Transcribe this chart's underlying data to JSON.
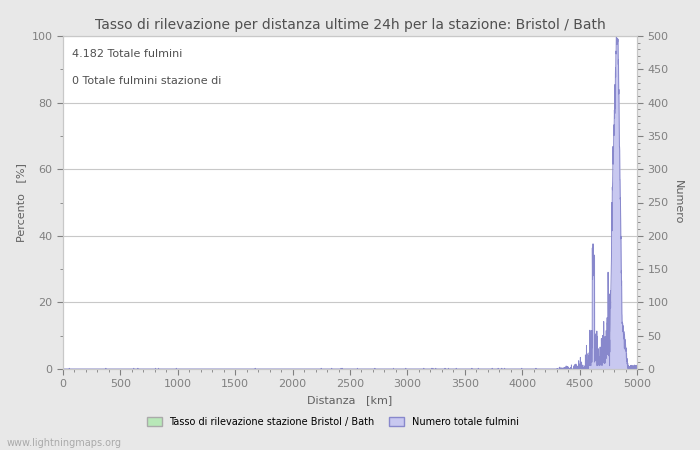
{
  "title": "Tasso di rilevazione per distanza ultime 24h per la stazione: Bristol / Bath",
  "annotation_line1": "4.182 Totale fulmini",
  "annotation_line2": "0 Totale fulmini stazione di",
  "xlabel": "Distanza   [km]",
  "ylabel_left": "Percento   [%]",
  "ylabel_right": "Numero",
  "xlim": [
    0,
    5000
  ],
  "ylim_left": [
    0,
    100
  ],
  "ylim_right": [
    0,
    500
  ],
  "xticks": [
    0,
    500,
    1000,
    1500,
    2000,
    2500,
    3000,
    3500,
    4000,
    4500,
    5000
  ],
  "yticks_left": [
    0,
    20,
    40,
    60,
    80,
    100
  ],
  "yticks_right": [
    0,
    50,
    100,
    150,
    200,
    250,
    300,
    350,
    400,
    450,
    500
  ],
  "legend_label1": "Tasso di rilevazione stazione Bristol / Bath",
  "legend_label2": "Numero totale fulmini",
  "watermark": "www.lightningmaps.org",
  "bg_color": "#e8e8e8",
  "plot_bg_color": "#ffffff",
  "grid_color": "#c8c8c8",
  "bar_color_green": "#b8e8b8",
  "bar_color_blue": "#c8c8f0",
  "line_color_blue": "#8888cc",
  "text_color": "#505050",
  "axis_label_color": "#606060",
  "tick_color": "#808080",
  "title_fontsize": 10,
  "label_fontsize": 8,
  "tick_fontsize": 8,
  "annotation_fontsize": 8,
  "watermark_fontsize": 7
}
